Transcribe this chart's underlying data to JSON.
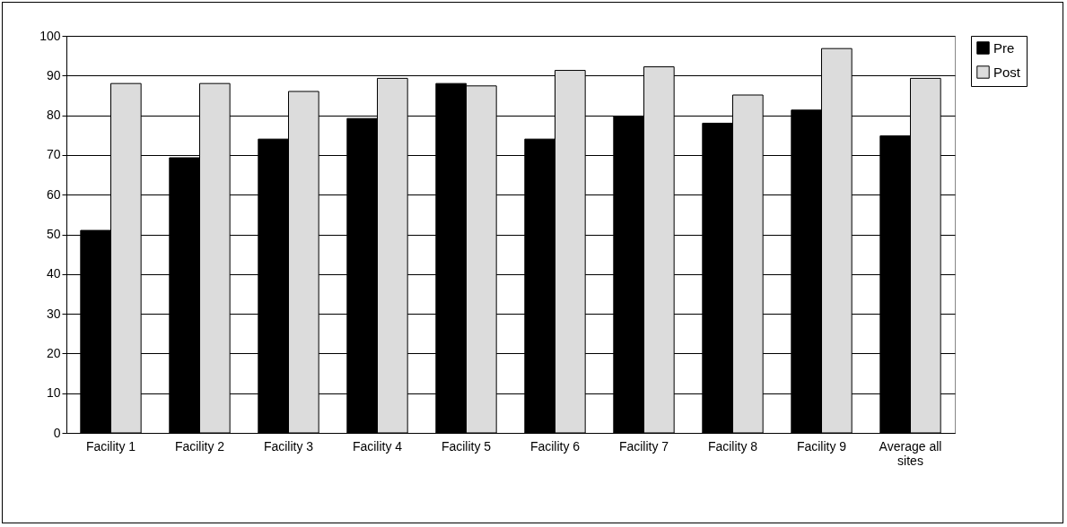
{
  "chart_data": {
    "type": "bar",
    "categories": [
      "Facility 1",
      "Facility 2",
      "Facility 3",
      "Facility 4",
      "Facility 5",
      "Facility 6",
      "Facility 7",
      "Facility 8",
      "Facility 9",
      "Average all sites"
    ],
    "series": [
      {
        "name": "Pre",
        "color": "#000000",
        "values": [
          51,
          69.3,
          74,
          79.2,
          88,
          74,
          79.8,
          78,
          81.3,
          74.8
        ]
      },
      {
        "name": "Post",
        "color": "#dcdcdc",
        "values": [
          88,
          88,
          86,
          89.3,
          87.4,
          91.3,
          92.2,
          85.1,
          96.8,
          89.3
        ]
      }
    ],
    "ylim": [
      0,
      100
    ],
    "yticks": [
      0,
      10,
      20,
      30,
      40,
      50,
      60,
      70,
      80,
      90,
      100
    ],
    "grid": "y",
    "legend": "right"
  }
}
